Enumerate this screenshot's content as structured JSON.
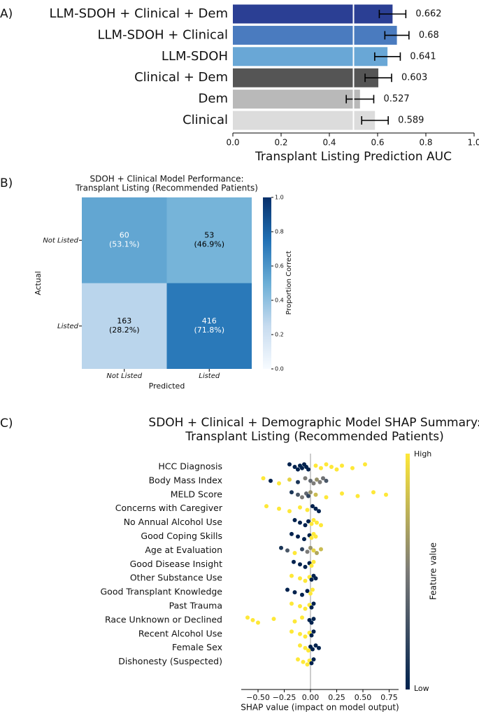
{
  "chart_data": [
    {
      "type": "bar",
      "panel_label": "A)",
      "categories": [
        "LLM-SDOH + Clinical + Dem",
        "LLM-SDOH + Clinical",
        "LLM-SDOH",
        "Clinical + Dem",
        "Dem",
        "Clinical"
      ],
      "values": [
        0.662,
        0.68,
        0.641,
        0.603,
        0.527,
        0.589
      ],
      "errors": [
        0.055,
        0.05,
        0.053,
        0.055,
        0.057,
        0.055
      ],
      "colors": [
        "#2b3f94",
        "#4a7bbf",
        "#69a7d6",
        "#555555",
        "#b9b9b9",
        "#dcdcdc"
      ],
      "vline": 0.5,
      "x_label": "Transplant Listing Prediction AUC",
      "xlim": [
        0,
        1
      ],
      "xticks": [
        {
          "value": 0,
          "label": "0.0"
        },
        {
          "value": 0.2,
          "label": "0.2"
        },
        {
          "value": 0.4,
          "label": "0.4"
        },
        {
          "value": 0.6,
          "label": "0.6"
        },
        {
          "value": 0.8,
          "label": "0.8"
        },
        {
          "value": 1,
          "label": "1.0"
        }
      ]
    },
    {
      "type": "heatmap",
      "panel_label": "B)",
      "title": [
        "SDOH + Clinical Model Performance:",
        "Transplant Listing (Recommended Patients)"
      ],
      "x_categories": [
        "Not Listed",
        "Listed"
      ],
      "y_categories": [
        "Not Listed",
        "Listed"
      ],
      "values": [
        [
          60,
          53
        ],
        [
          163,
          416
        ]
      ],
      "proportions": [
        [
          0.531,
          0.469
        ],
        [
          0.282,
          0.718
        ]
      ],
      "proportion_labels": [
        [
          "(53.1%)",
          "(46.9%)"
        ],
        [
          "(28.2%)",
          "(71.8%)"
        ]
      ],
      "x_label": "Predicted",
      "y_label": "Actual",
      "colorbar_label": "Proportion Correct",
      "clim": [
        0,
        1
      ],
      "cticks": [
        {
          "value": 0,
          "label": "0.0"
        },
        {
          "value": 0.2,
          "label": "0.2"
        },
        {
          "value": 0.4,
          "label": "0.4"
        },
        {
          "value": 0.6,
          "label": "0.6"
        },
        {
          "value": 0.8,
          "label": "0.8"
        },
        {
          "value": 1,
          "label": "1.0"
        }
      ]
    },
    {
      "type": "beeswarm",
      "panel_label": "C)",
      "title": [
        "SDOH + Clinical + Demographic Model SHAP Summary:",
        "Transplant Listing (Recommended Patients)"
      ],
      "x_label": "SHAP value (impact on model output)",
      "colorbar_label": "Feature value",
      "colorbar_high": "High",
      "colorbar_low": "Low",
      "xlim": [
        -0.66,
        0.84
      ],
      "xticks": [
        {
          "value": -0.5,
          "label": "−0.50"
        },
        {
          "value": -0.25,
          "label": "−0.25"
        },
        {
          "value": 0,
          "label": "0.00"
        },
        {
          "value": 0.25,
          "label": "0.25"
        },
        {
          "value": 0.5,
          "label": "0.50"
        },
        {
          "value": 0.75,
          "label": "0.75"
        }
      ],
      "features": [
        {
          "name": "HCC Diagnosis",
          "shap": [
            -0.2,
            -0.15,
            -0.12,
            -0.1,
            -0.08,
            -0.06,
            -0.04,
            -0.02,
            0.05,
            0.1,
            0.15,
            0.2,
            0.25,
            0.3,
            0.4,
            0.52
          ],
          "feature_value": [
            0,
            0,
            0,
            0,
            0,
            0,
            0,
            0,
            1,
            1,
            1,
            1,
            1,
            1,
            1,
            1
          ]
        },
        {
          "name": "Body Mass Index",
          "shap": [
            -0.45,
            -0.38,
            -0.3,
            -0.2,
            -0.12,
            -0.05,
            0,
            0.03,
            0.06,
            0.09,
            0.12,
            0.15
          ],
          "feature_value": [
            1,
            0,
            1,
            0.9,
            0.1,
            0.5,
            0.4,
            0.5,
            0.6,
            0.5,
            0.45,
            0.3
          ]
        },
        {
          "name": "MELD Score",
          "shap": [
            -0.18,
            -0.12,
            -0.08,
            -0.04,
            -0.02,
            0,
            0.05,
            0.15,
            0.3,
            0.45,
            0.6,
            0.72
          ],
          "feature_value": [
            0.1,
            0.3,
            0.5,
            0.4,
            0.2,
            0.6,
            0.8,
            1,
            1,
            1,
            1,
            1
          ]
        },
        {
          "name": "Concerns with Caregiver",
          "shap": [
            -0.42,
            -0.3,
            -0.2,
            -0.1,
            -0.03,
            0.02,
            0.05,
            0.08
          ],
          "feature_value": [
            1,
            1,
            1,
            1,
            1,
            0,
            0,
            0
          ]
        },
        {
          "name": "No Annual Alcohol Use",
          "shap": [
            -0.15,
            -0.1,
            -0.05,
            -0.02,
            0.01,
            0.03,
            0.06,
            0.1
          ],
          "feature_value": [
            0,
            0,
            0,
            0,
            1,
            1,
            1,
            1
          ]
        },
        {
          "name": "Good Coping Skills",
          "shap": [
            -0.18,
            -0.12,
            -0.06,
            -0.01,
            0.01,
            0.03,
            0.05
          ],
          "feature_value": [
            0,
            0,
            0,
            0,
            1,
            1,
            1
          ]
        },
        {
          "name": "Age at Evaluation",
          "shap": [
            -0.28,
            -0.22,
            -0.15,
            -0.08,
            -0.03,
            0,
            0.03,
            0.06,
            0.1
          ],
          "feature_value": [
            0.1,
            0.3,
            1,
            0.2,
            0.5,
            0.6,
            0.9,
            0.7,
            0.8
          ]
        },
        {
          "name": "Good Disease Insight",
          "shap": [
            -0.16,
            -0.1,
            -0.05,
            -0.01,
            0.01,
            0.03
          ],
          "feature_value": [
            0,
            0,
            0,
            0,
            1,
            1
          ]
        },
        {
          "name": "Other Substance Use",
          "shap": [
            -0.18,
            -0.1,
            -0.05,
            -0.01,
            0.01,
            0.03,
            0.05
          ],
          "feature_value": [
            1,
            1,
            1,
            1,
            0,
            0,
            0
          ]
        },
        {
          "name": "Good Transplant Knowledge",
          "shap": [
            -0.22,
            -0.15,
            -0.08,
            -0.03,
            0,
            0.02
          ],
          "feature_value": [
            0,
            0,
            0,
            0,
            1,
            1
          ]
        },
        {
          "name": "Past Trauma",
          "shap": [
            -0.18,
            -0.1,
            -0.05,
            -0.01,
            0.01,
            0.03
          ],
          "feature_value": [
            1,
            1,
            1,
            1,
            0,
            0
          ]
        },
        {
          "name": "Race Unknown or Declined",
          "shap": [
            -0.6,
            -0.55,
            -0.5,
            -0.35,
            -0.15,
            -0.08,
            -0.01,
            0.01,
            0.03
          ],
          "feature_value": [
            1,
            1,
            1,
            1,
            1,
            1,
            0,
            0,
            0
          ]
        },
        {
          "name": "Recent Alcohol Use",
          "shap": [
            -0.18,
            -0.1,
            -0.05,
            -0.01,
            0.01,
            0.03
          ],
          "feature_value": [
            1,
            1,
            1,
            1,
            0,
            0
          ]
        },
        {
          "name": "Female Sex",
          "shap": [
            -0.1,
            -0.05,
            -0.02,
            0,
            0.02,
            0.05,
            0.08
          ],
          "feature_value": [
            1,
            1,
            1,
            0,
            0,
            0,
            0
          ]
        },
        {
          "name": "Dishonesty (Suspected)",
          "shap": [
            -0.12,
            -0.07,
            -0.03,
            -0.01,
            0.01,
            0.03
          ],
          "feature_value": [
            1,
            1,
            1,
            1,
            0,
            0
          ]
        }
      ]
    }
  ]
}
